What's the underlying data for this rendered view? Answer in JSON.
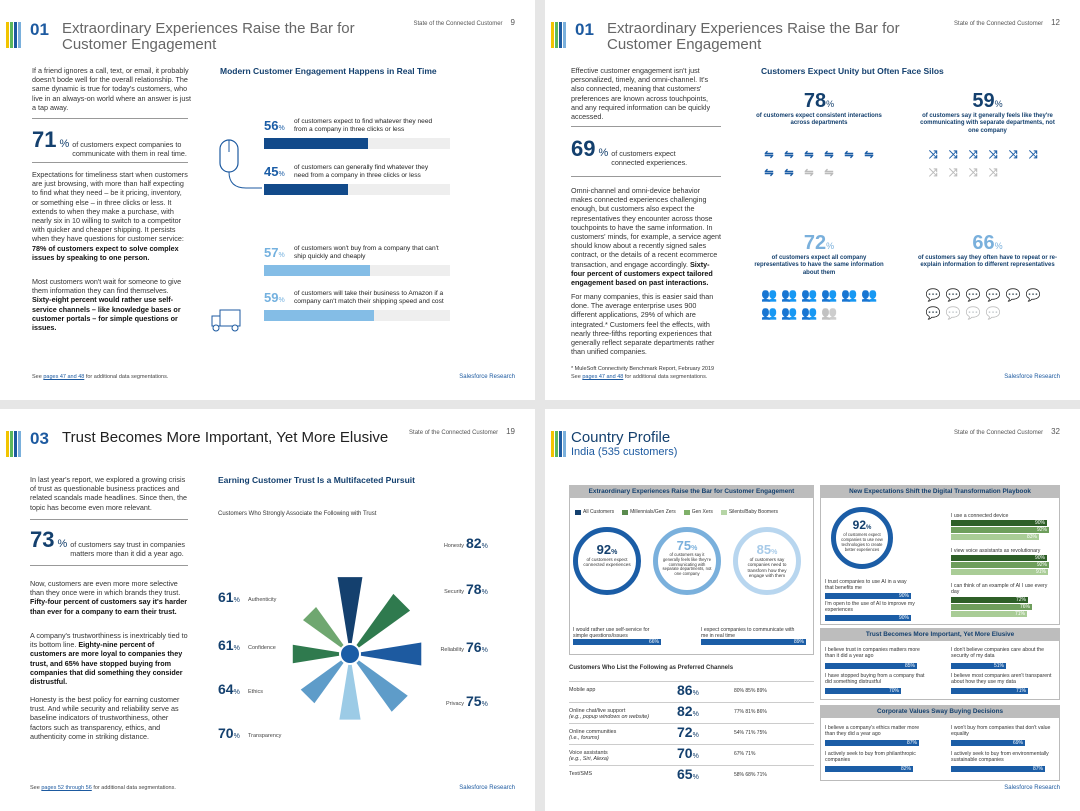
{
  "p1": {
    "num": "01",
    "title": "Extraordinary Experiences Raise the Bar for Customer Engagement",
    "report": "State of the Connected Customer",
    "page": "9",
    "intro": "If a friend ignores a call, text, or email, it probably doesn't bode well for the overall relationship. The same dynamic is true for today's customers, who live in an always-on world where an answer is just a tap away.",
    "big_n": "71",
    "big_pct": "%",
    "big_label": "of customers expect companies to communicate with them in real time.",
    "body1": "Expectations for timeliness start when customers are just browsing, with more than half expecting to find what they need – be it pricing, inventory, or something else – in three clicks or less. It extends to when they make a purchase, with nearly six in 10 willing to switch to a competitor with quicker and cheaper shipping. It persists when they have questions for customer service:",
    "body1b": "78% of customers expect to solve complex issues by speaking to one person.",
    "body2": "Most customers won't wait for someone to give them information they can find themselves.",
    "body2b": "Sixty-eight percent would rather use self-service channels – like knowledge bases or customer portals – for simple questions or issues.",
    "chart_title": "Modern Customer Engagement Happens in Real Time",
    "bars": [
      {
        "v": "56",
        "label": "of customers expect to find whatever they need from a company in three clicks or less",
        "f": 56
      },
      {
        "v": "45",
        "label": "of customers can generally find whatever they need from a company in three clicks or less",
        "f": 45
      },
      {
        "v": "57",
        "label": "of customers won't buy from a company that can't ship quickly and cheaply",
        "f": 57
      },
      {
        "v": "59",
        "label": "of customers will take their business to Amazon if a company can't match their shipping speed and cost",
        "f": 59
      }
    ],
    "pct": "%",
    "foot_pre": "See",
    "foot_link": "pages 47 and 48",
    "foot_post": "for additional data segmentations.",
    "brand": "Salesforce Research"
  },
  "p2": {
    "num": "01",
    "title": "Extraordinary Experiences Raise the Bar for Customer Engagement",
    "report": "State of the Connected Customer",
    "page": "12",
    "intro": "Effective customer engagement isn't just personalized, timely, and omni-channel. It's also connected, meaning that customers' preferences are known across touchpoints, and any required information can be quickly accessed.",
    "big_n": "69",
    "big_pct": "%",
    "big_label": "of customers expect connected experiences.",
    "body1": "Omni-channel and omni-device behavior makes connected experiences challenging enough, but customers also expect the representatives they encounter across those touchpoints to have the same information. In customers' minds, for example, a service agent should know about a recently signed sales contract, or the details of a recent ecommerce transaction, and engage accordingly.",
    "body1b": "Sixty-four percent of customers expect tailored engagement based on past interactions.",
    "body2": "For many companies, this is easier said than done. The average enterprise uses 900 different applications, 29% of which are integrated.* Customers feel the effects, with nearly three-fifths reporting experiences that generally reflect separate departments rather than unified companies.",
    "footnote": "* MuleSoft Connectivity Benchmark Report, February 2019",
    "chart_title": "Customers Expect Unity but Often Face Silos",
    "stats": [
      {
        "v": "78",
        "d": "of customers expect consistent interactions across departments"
      },
      {
        "v": "59",
        "d": "of customers say it generally feels like they're communicating with separate departments, not one company"
      },
      {
        "v": "72",
        "d": "of customers expect all company representatives to have the same information about them"
      },
      {
        "v": "66",
        "d": "of customers say they often have to repeat or re-explain information to different representatives"
      }
    ],
    "pct": "%",
    "foot_pre": "See",
    "foot_link": "pages 47 and 48",
    "foot_post": "for additional data segmentations.",
    "brand": "Salesforce Research"
  },
  "p3": {
    "num": "03",
    "title": "Trust Becomes More Important, Yet More Elusive",
    "report": "State of the Connected Customer",
    "page": "19",
    "intro": "In last year's report, we explored a growing crisis of trust as questionable business practices and related scandals made headlines. Since then, the topic has become even more relevant.",
    "big_n": "73",
    "big_pct": "%",
    "big_label": "of customers say trust in companies matters more than it did a year ago.",
    "body1": "Now, customers are even more more selective than they once were in which brands they trust.",
    "body1b": "Fifty-four percent of customers say it's harder than ever for a company to earn their trust.",
    "body2": "A company's trustworthiness is inextricably tied to its bottom line.",
    "body2b": "Eighty-nine percent of customers are more loyal to companies they trust, and 65% have stopped buying from companies that did something they consider distrustful.",
    "body3": "Honesty is the best policy for earning customer trust. And while security and reliability serve as baseline indicators of trustworthiness, other factors such as transparency, ethics, and authenticity come in striking distance.",
    "chart_title": "Earning Customer Trust Is a Multifaceted Pursuit",
    "chart_sub": "Customers Who Strongly Associate the Following with Trust",
    "pct": "%",
    "foot_pre": "See",
    "foot_link": "pages 52 through 56",
    "foot_post": "for additional data segmentations.",
    "brand": "Salesforce Research"
  },
  "p4": {
    "title": "Country Profile",
    "subtitle": "India (535 customers)",
    "report": "State of the Connected Customer",
    "page": "32",
    "box1": "Extraordinary Experiences Raise the Bar for Customer Engagement",
    "legend": [
      "All Customers",
      "Millennials/Gen Zers",
      "Gen Xers",
      "Silents/Baby Boomers"
    ],
    "rings": [
      {
        "v": "92",
        "d": "of customers expect connected experiences"
      },
      {
        "v": "75",
        "d": "of customers say it generally feels like they're communicating with separate departments, not one company"
      },
      {
        "v": "85",
        "d": "of customers say companies need to transform how they engage with them"
      }
    ],
    "b1rows": [
      {
        "t": "I would rather use self-service for simple questions/issues",
        "v": "66%"
      },
      {
        "t": "I expect companies to communicate with me in real time",
        "v": "89%"
      }
    ],
    "ch_title": "Customers Who List the Following as Preferred Channels",
    "channels": [
      {
        "n": "Mobile app",
        "s": "",
        "v": "86",
        "d": "80% 85% 89%"
      },
      {
        "n": "Online chat/live support",
        "s": "(e.g., popup windows on website)",
        "v": "82",
        "d": "77% 81% 86%"
      },
      {
        "n": "Online communities",
        "s": "(i.e., forums)",
        "v": "72",
        "d": "54% 71% 75%"
      },
      {
        "n": "Voice assistants",
        "s": "(e.g., Siri, Alexa)",
        "v": "70",
        "d": "67% 71%"
      },
      {
        "n": "Text/SMS",
        "s": "",
        "v": "65",
        "d": "58% 68% 71%"
      }
    ],
    "box2": "New Expectations Shift the Digital Transformation Playbook",
    "ring2": {
      "v": "92",
      "d": "of customers expect companies to use new technologies to create better experiences"
    },
    "b2left": [
      {
        "t": "I trust companies to use AI in a way that benefits me",
        "v": "90%"
      },
      {
        "t": "I'm open to the use of AI to improve my experiences",
        "v": "90%"
      }
    ],
    "b2right": [
      {
        "t": "I use a connected device",
        "v": [
          "90%",
          "92%",
          "83%"
        ]
      },
      {
        "t": "I view voice assistants as revolutionary",
        "v": [
          "90%",
          "92%",
          "91%"
        ]
      },
      {
        "t": "I can think of an example of AI I use every day",
        "v": [
          "72%",
          "76%",
          "71%"
        ]
      }
    ],
    "box3": "Trust Becomes More Important, Yet More Elusive",
    "b3": [
      {
        "t": "I believe trust in companies matters more than it did a year ago",
        "v": "85%"
      },
      {
        "t": "I don't believe companies care about the security of my data",
        "v": "51%"
      },
      {
        "t": "I have stopped buying from a company that did something distrustful",
        "v": "70%"
      },
      {
        "t": "I believe most companies aren't transparent about how they use my data",
        "v": "71%"
      }
    ],
    "box4": "Corporate Values Sway Buying Decisions",
    "b4": [
      {
        "t": "I believe a company's ethics matter more than they did a year ago",
        "v": "87%"
      },
      {
        "t": "I won't buy from companies that don't value equality",
        "v": "69%"
      },
      {
        "t": "I actively seek to buy from philanthropic companies",
        "v": "82%"
      },
      {
        "t": "I actively seek to buy from environmentally sustainable companies",
        "v": "87%"
      }
    ],
    "brand": "Salesforce Research"
  },
  "chart_data": [
    {
      "type": "bar",
      "title": "Modern Customer Engagement Happens in Real Time",
      "categories": [
        "Find what they need in 3 clicks or less (expect)",
        "Can generally find in 3 clicks or less",
        "Won't buy if can't ship quickly and cheaply",
        "Will take business to Amazon"
      ],
      "values": [
        56,
        45,
        57,
        59
      ],
      "ylim": [
        0,
        100
      ]
    },
    {
      "type": "bar",
      "title": "Earning Customer Trust Is a Multifaceted Pursuit",
      "categories": [
        "Honesty",
        "Security",
        "Reliability",
        "Privacy",
        "Transparency",
        "Ethics",
        "Confidence",
        "Authenticity"
      ],
      "values": [
        82,
        78,
        76,
        75,
        70,
        64,
        61,
        61
      ],
      "ylim": [
        0,
        100
      ]
    }
  ]
}
